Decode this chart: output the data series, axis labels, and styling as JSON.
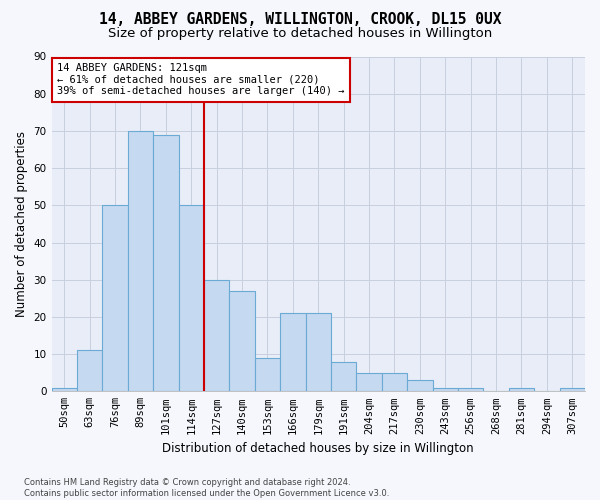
{
  "title_line1": "14, ABBEY GARDENS, WILLINGTON, CROOK, DL15 0UX",
  "title_line2": "Size of property relative to detached houses in Willington",
  "xlabel": "Distribution of detached houses by size in Willington",
  "ylabel": "Number of detached properties",
  "categories": [
    "50sqm",
    "63sqm",
    "76sqm",
    "89sqm",
    "101sqm",
    "114sqm",
    "127sqm",
    "140sqm",
    "153sqm",
    "166sqm",
    "179sqm",
    "191sqm",
    "204sqm",
    "217sqm",
    "230sqm",
    "243sqm",
    "256sqm",
    "268sqm",
    "281sqm",
    "294sqm",
    "307sqm"
  ],
  "values": [
    1,
    11,
    50,
    70,
    69,
    50,
    30,
    27,
    9,
    21,
    21,
    8,
    5,
    5,
    3,
    1,
    1,
    0,
    1,
    0,
    1
  ],
  "bar_color": "#c5d9f0",
  "bar_edge_color": "#6aaad4",
  "vline_x_index": 6,
  "vline_color": "#cc0000",
  "annotation_text": "14 ABBEY GARDENS: 121sqm\n← 61% of detached houses are smaller (220)\n39% of semi-detached houses are larger (140) →",
  "annotation_box_color": "#ffffff",
  "annotation_box_edge_color": "#cc0000",
  "ylim": [
    0,
    90
  ],
  "yticks": [
    0,
    10,
    20,
    30,
    40,
    50,
    60,
    70,
    80,
    90
  ],
  "grid_color": "#c8d0e0",
  "background_color": "#f5f7fc",
  "axes_background_color": "#e8edf7",
  "footnote": "Contains HM Land Registry data © Crown copyright and database right 2024.\nContains public sector information licensed under the Open Government Licence v3.0.",
  "title_fontsize": 10.5,
  "subtitle_fontsize": 9.5,
  "axis_label_fontsize": 8.5,
  "tick_fontsize": 7.5,
  "annotation_fontsize": 7.5
}
